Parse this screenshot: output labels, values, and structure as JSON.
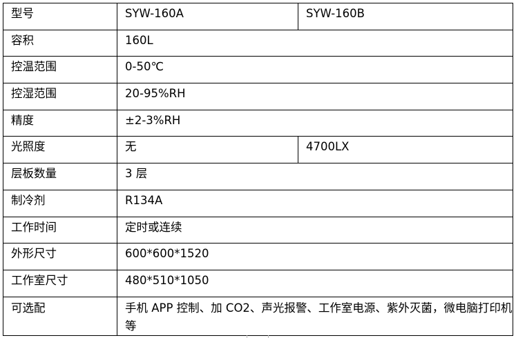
{
  "table": {
    "rows": [
      {
        "label": "型号",
        "value": "SYW-160A",
        "value_b": "SYW-160B"
      },
      {
        "label": "容积",
        "value": "160L"
      },
      {
        "label": "控温范围",
        "value": "0-50℃"
      },
      {
        "label": "控湿范围",
        "value": "20-95%RH"
      },
      {
        "label": "精度",
        "value": "±2-3%RH"
      },
      {
        "label": "光照度",
        "value": "无",
        "value_b": "4700LX"
      },
      {
        "label": "层板数量",
        "value": "3 层"
      },
      {
        "label": "制冷剂",
        "value": "R134A"
      },
      {
        "label": "工作时间",
        "value": "定时或连续"
      },
      {
        "label": "外形尺寸",
        "value": "600*600*1520"
      },
      {
        "label": "工作室尺寸",
        "value": "480*510*1050"
      },
      {
        "label": "可选配",
        "value": "手机 APP 控制、加 CO2、声光报警、工作室电源、紫外灭菌，微电脑打印机等"
      }
    ]
  }
}
